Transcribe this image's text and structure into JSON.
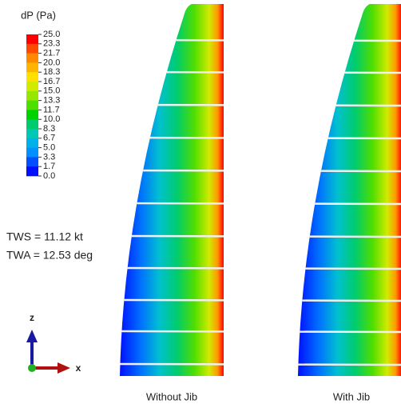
{
  "legend": {
    "title": "dP (Pa)",
    "labels": [
      "25.0",
      "23.3",
      "21.7",
      "20.0",
      "18.3",
      "16.7",
      "15.0",
      "13.3",
      "11.7",
      "10.0",
      "8.3",
      "6.7",
      "5.0",
      "3.3",
      "1.7",
      "0.0"
    ],
    "colors": [
      "#ff0000",
      "#ff4a00",
      "#ff8a00",
      "#ffb400",
      "#ffe000",
      "#d2ea00",
      "#96e600",
      "#4ede00",
      "#00d200",
      "#00cc6e",
      "#00c8b4",
      "#00b0e8",
      "#0090ff",
      "#0050ff",
      "#0010ff"
    ]
  },
  "conditions": [
    "TWS = 11.12 kt",
    "TWA = 12.53 deg"
  ],
  "axes": {
    "vertical": "z",
    "horizontal": "x"
  },
  "panels": [
    {
      "caption": "Without Jib"
    },
    {
      "caption": "With Jib"
    }
  ]
}
